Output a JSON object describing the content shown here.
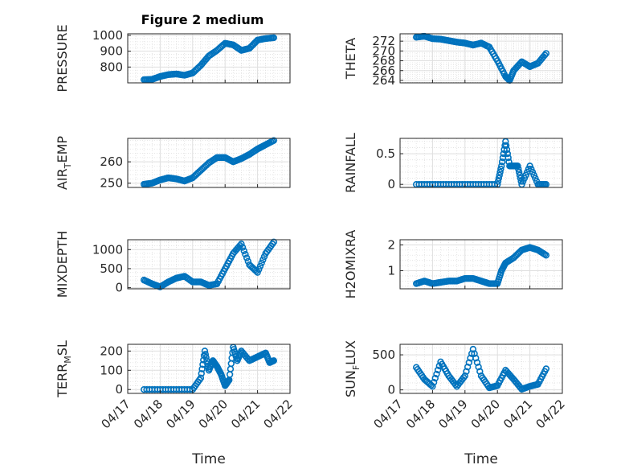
{
  "figure": {
    "title": "Figure 2 medium"
  },
  "colors": {
    "marker": "#0072BD",
    "axes": "#262626",
    "grid": "#DFDFDF"
  },
  "chart_data": [
    {
      "type": "scatter",
      "ylabel": "PRESSURE",
      "ylim": [
        700,
        1010
      ],
      "yticks": [
        800,
        900,
        1000
      ],
      "grid": true,
      "x": [
        "04/17 12:00",
        "04/17 18:00",
        "04/18 00:00",
        "04/18 06:00",
        "04/18 12:00",
        "04/18 18:00",
        "04/19 00:00",
        "04/19 06:00",
        "04/19 12:00",
        "04/19 18:00",
        "04/20 00:00",
        "04/20 06:00",
        "04/20 12:00",
        "04/20 18:00",
        "04/21 00:00",
        "04/21 06:00",
        "04/21 12:00"
      ],
      "y": [
        720,
        722,
        740,
        752,
        756,
        748,
        762,
        810,
        870,
        905,
        950,
        940,
        905,
        918,
        970,
        980,
        985
      ]
    },
    {
      "type": "scatter",
      "ylabel": "THETA",
      "ylim": [
        263.5,
        273.5
      ],
      "yticks": [
        264,
        266,
        268,
        270,
        272
      ],
      "grid": true,
      "x": [
        "04/17 12:00",
        "04/17 18:00",
        "04/18 00:00",
        "04/18 06:00",
        "04/18 12:00",
        "04/18 18:00",
        "04/19 00:00",
        "04/19 06:00",
        "04/19 12:00",
        "04/19 18:00",
        "04/20 00:00",
        "04/20 06:00",
        "04/20 09:00",
        "04/20 12:00",
        "04/20 18:00",
        "04/21 00:00",
        "04/21 06:00",
        "04/21 12:00"
      ],
      "y": [
        272.8,
        273.0,
        272.5,
        272.4,
        272.1,
        271.8,
        271.6,
        271.2,
        271.6,
        270.8,
        268.0,
        264.8,
        264.0,
        266.0,
        267.8,
        266.8,
        267.5,
        269.5
      ]
    },
    {
      "type": "scatter",
      "ylabel": "AIR_TEMP",
      "ylim": [
        248,
        271
      ],
      "yticks": [
        250,
        260
      ],
      "grid": true,
      "x": [
        "04/17 12:00",
        "04/17 18:00",
        "04/18 00:00",
        "04/18 06:00",
        "04/18 12:00",
        "04/18 18:00",
        "04/19 00:00",
        "04/19 06:00",
        "04/19 12:00",
        "04/19 18:00",
        "04/20 00:00",
        "04/20 06:00",
        "04/20 12:00",
        "04/20 18:00",
        "04/21 00:00",
        "04/21 06:00",
        "04/21 12:00"
      ],
      "y": [
        249.5,
        250.0,
        251.5,
        252.5,
        252.0,
        251.0,
        252.5,
        256.0,
        259.5,
        262.0,
        262.0,
        260.0,
        261.5,
        263.5,
        266.0,
        268.0,
        270.0
      ]
    },
    {
      "type": "scatter",
      "ylabel": "RAINFALL",
      "ylim": [
        -0.05,
        0.75
      ],
      "yticks": [
        0,
        0.5
      ],
      "grid": true,
      "x": [
        "04/17 12:00",
        "04/18 00:00",
        "04/18 12:00",
        "04/19 00:00",
        "04/19 12:00",
        "04/20 00:00",
        "04/20 03:00",
        "04/20 06:00",
        "04/20 09:00",
        "04/20 12:00",
        "04/20 15:00",
        "04/20 18:00",
        "04/21 00:00",
        "04/21 06:00",
        "04/21 12:00"
      ],
      "y": [
        0,
        0,
        0,
        0,
        0,
        0,
        0.3,
        0.7,
        0.3,
        0.3,
        0.3,
        0,
        0.3,
        0,
        0
      ]
    },
    {
      "type": "scatter",
      "ylabel": "MIXDEPTH",
      "ylim": [
        -30,
        1260
      ],
      "yticks": [
        0,
        500,
        1000
      ],
      "grid": true,
      "x": [
        "04/17 12:00",
        "04/17 18:00",
        "04/18 00:00",
        "04/18 06:00",
        "04/18 12:00",
        "04/18 18:00",
        "04/19 00:00",
        "04/19 06:00",
        "04/19 12:00",
        "04/19 18:00",
        "04/20 00:00",
        "04/20 06:00",
        "04/20 12:00",
        "04/20 18:00",
        "04/21 00:00",
        "04/21 06:00",
        "04/21 12:00"
      ],
      "y": [
        200,
        100,
        20,
        150,
        250,
        300,
        150,
        150,
        60,
        100,
        500,
        900,
        1150,
        600,
        400,
        900,
        1200
      ]
    },
    {
      "type": "scatter",
      "ylabel": "H2OMIXRA",
      "ylim": [
        0.3,
        2.2
      ],
      "yticks": [
        1,
        2
      ],
      "grid": true,
      "x": [
        "04/17 12:00",
        "04/17 18:00",
        "04/18 00:00",
        "04/18 06:00",
        "04/18 12:00",
        "04/18 18:00",
        "04/19 00:00",
        "04/19 06:00",
        "04/19 12:00",
        "04/19 18:00",
        "04/20 00:00",
        "04/20 03:00",
        "04/20 06:00",
        "04/20 12:00",
        "04/20 18:00",
        "04/21 00:00",
        "04/21 06:00",
        "04/21 12:00"
      ],
      "y": [
        0.5,
        0.6,
        0.5,
        0.55,
        0.6,
        0.6,
        0.7,
        0.7,
        0.6,
        0.5,
        0.5,
        1.0,
        1.3,
        1.5,
        1.8,
        1.9,
        1.8,
        1.6
      ]
    },
    {
      "type": "scatter",
      "ylabel": "TERR_MSL",
      "ylim": [
        -20,
        235
      ],
      "yticks": [
        0,
        100,
        200
      ],
      "grid": true,
      "x": [
        "04/17 12:00",
        "04/18 00:00",
        "04/18 12:00",
        "04/19 00:00",
        "04/19 06:00",
        "04/19 09:00",
        "04/19 12:00",
        "04/19 15:00",
        "04/19 18:00",
        "04/19 21:00",
        "04/20 00:00",
        "04/20 03:00",
        "04/20 06:00",
        "04/20 09:00",
        "04/20 12:00",
        "04/20 18:00",
        "04/21 00:00",
        "04/21 06:00",
        "04/21 09:00",
        "04/21 12:00"
      ],
      "y": [
        0,
        0,
        0,
        0,
        60,
        200,
        100,
        150,
        120,
        80,
        20,
        50,
        220,
        150,
        200,
        150,
        170,
        190,
        140,
        150
      ]
    },
    {
      "type": "scatter",
      "ylabel": "SUN_FLUX",
      "ylim": [
        -50,
        650
      ],
      "yticks": [
        0,
        500
      ],
      "grid": true,
      "x": [
        "04/17 12:00",
        "04/17 18:00",
        "04/18 00:00",
        "04/18 06:00",
        "04/18 12:00",
        "04/18 18:00",
        "04/19 00:00",
        "04/19 06:00",
        "04/19 12:00",
        "04/19 18:00",
        "04/20 00:00",
        "04/20 06:00",
        "04/20 12:00",
        "04/20 18:00",
        "04/21 00:00",
        "04/21 06:00",
        "04/21 12:00"
      ],
      "y": [
        320,
        150,
        50,
        400,
        200,
        50,
        200,
        580,
        200,
        30,
        60,
        280,
        150,
        10,
        50,
        80,
        300
      ]
    }
  ],
  "axes_common": {
    "xlim": [
      "04/17 00:00",
      "04/22 00:00"
    ],
    "xticks": [
      "04/17",
      "04/18",
      "04/19",
      "04/20",
      "04/21",
      "04/22"
    ],
    "xlabel": "Time"
  }
}
